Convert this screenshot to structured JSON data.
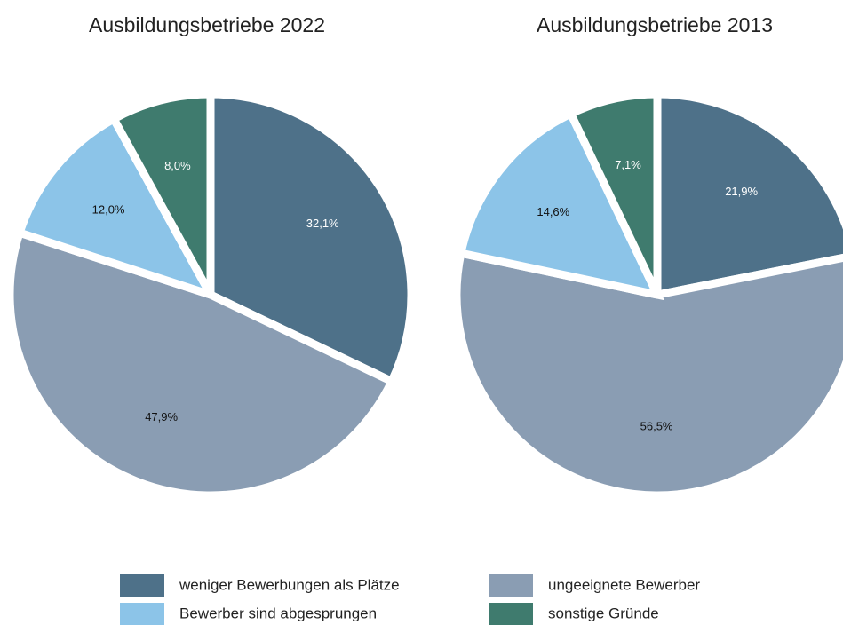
{
  "chart_data": [
    {
      "type": "pie",
      "title": "Ausbildungsbetriebe 2022",
      "categories": [
        "weniger Bewerbungen als Plätze",
        "ungeeignete Bewerber",
        "Bewerber sind abgesprungen",
        "sonstige Gründe"
      ],
      "values": [
        32.1,
        47.9,
        12.0,
        8.0
      ],
      "value_labels": [
        "32,1%",
        "47,9%",
        "12,0%",
        "8,0%"
      ],
      "colors": [
        "#4e7189",
        "#8a9db3",
        "#8cc4e8",
        "#3f7b6e"
      ]
    },
    {
      "type": "pie",
      "title": "Ausbildungsbetriebe 2013",
      "categories": [
        "weniger Bewerbungen als Plätze",
        "ungeeignete Bewerber",
        "Bewerber sind abgesprungen",
        "sonstige Gründe"
      ],
      "values": [
        21.9,
        56.5,
        14.6,
        7.1
      ],
      "value_labels": [
        "21,9%",
        "56,5%",
        "14,6%",
        "7,1%"
      ],
      "colors": [
        "#4e7189",
        "#8a9db3",
        "#8cc4e8",
        "#3f7b6e"
      ]
    }
  ]
}
